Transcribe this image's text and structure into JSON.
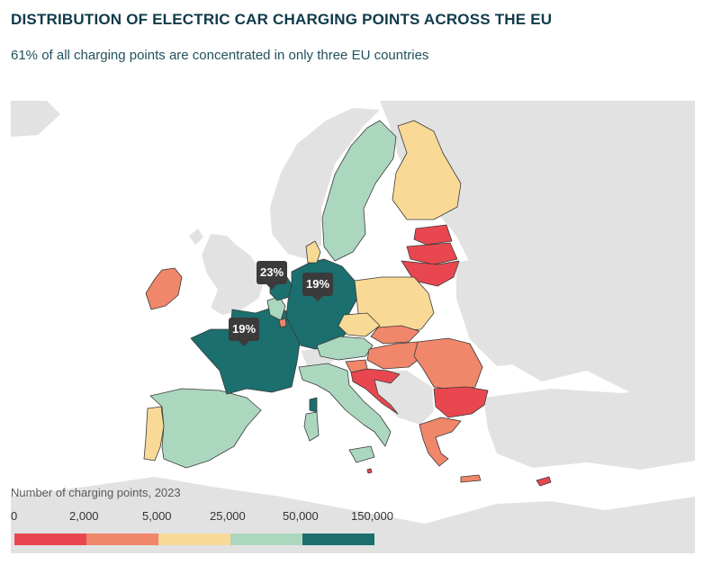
{
  "header": {
    "title": "DISTRIBUTION OF ELECTRIC CAR CHARGING POINTS ACROSS THE EU",
    "subtitle": "61% of all charging points are concentrated in only three EU countries"
  },
  "legend": {
    "title": "Number of charging points, 2023",
    "ticks": [
      "0",
      "2,000",
      "5,000",
      "25,000",
      "50,000",
      "150,000"
    ],
    "classes": [
      {
        "range": "0–2,000",
        "color": "#e8474f"
      },
      {
        "range": "2,000–5,000",
        "color": "#f0866a"
      },
      {
        "range": "5,000–25,000",
        "color": "#f8d996"
      },
      {
        "range": "25,000–50,000",
        "color": "#acd7bf"
      },
      {
        "range": "50,000–150,000",
        "color": "#1b6f6e"
      }
    ]
  },
  "callouts": [
    {
      "country": "Netherlands",
      "label": "23%"
    },
    {
      "country": "Germany",
      "label": "19%"
    },
    {
      "country": "France",
      "label": "19%"
    }
  ],
  "colors": {
    "non_eu_land": "#e2e2e2",
    "sea": "#ffffff",
    "border": "#3a3a3a"
  },
  "countries": [
    {
      "name": "Netherlands",
      "class": 4
    },
    {
      "name": "Germany",
      "class": 4
    },
    {
      "name": "France",
      "class": 4
    },
    {
      "name": "Belgium",
      "class": 3
    },
    {
      "name": "Sweden",
      "class": 3
    },
    {
      "name": "Spain",
      "class": 3
    },
    {
      "name": "Italy",
      "class": 3
    },
    {
      "name": "Austria",
      "class": 3
    },
    {
      "name": "Denmark",
      "class": 2
    },
    {
      "name": "Finland",
      "class": 2
    },
    {
      "name": "Poland",
      "class": 2
    },
    {
      "name": "Portugal",
      "class": 2
    },
    {
      "name": "Czechia",
      "class": 2
    },
    {
      "name": "Ireland",
      "class": 1
    },
    {
      "name": "Slovakia",
      "class": 1
    },
    {
      "name": "Hungary",
      "class": 1
    },
    {
      "name": "Romania",
      "class": 1
    },
    {
      "name": "Greece",
      "class": 1
    },
    {
      "name": "Slovenia",
      "class": 1
    },
    {
      "name": "Luxembourg",
      "class": 1
    },
    {
      "name": "Estonia",
      "class": 0
    },
    {
      "name": "Latvia",
      "class": 0
    },
    {
      "name": "Lithuania",
      "class": 0
    },
    {
      "name": "Croatia",
      "class": 0
    },
    {
      "name": "Bulgaria",
      "class": 0
    },
    {
      "name": "Cyprus",
      "class": 0
    },
    {
      "name": "Malta",
      "class": 0
    }
  ]
}
